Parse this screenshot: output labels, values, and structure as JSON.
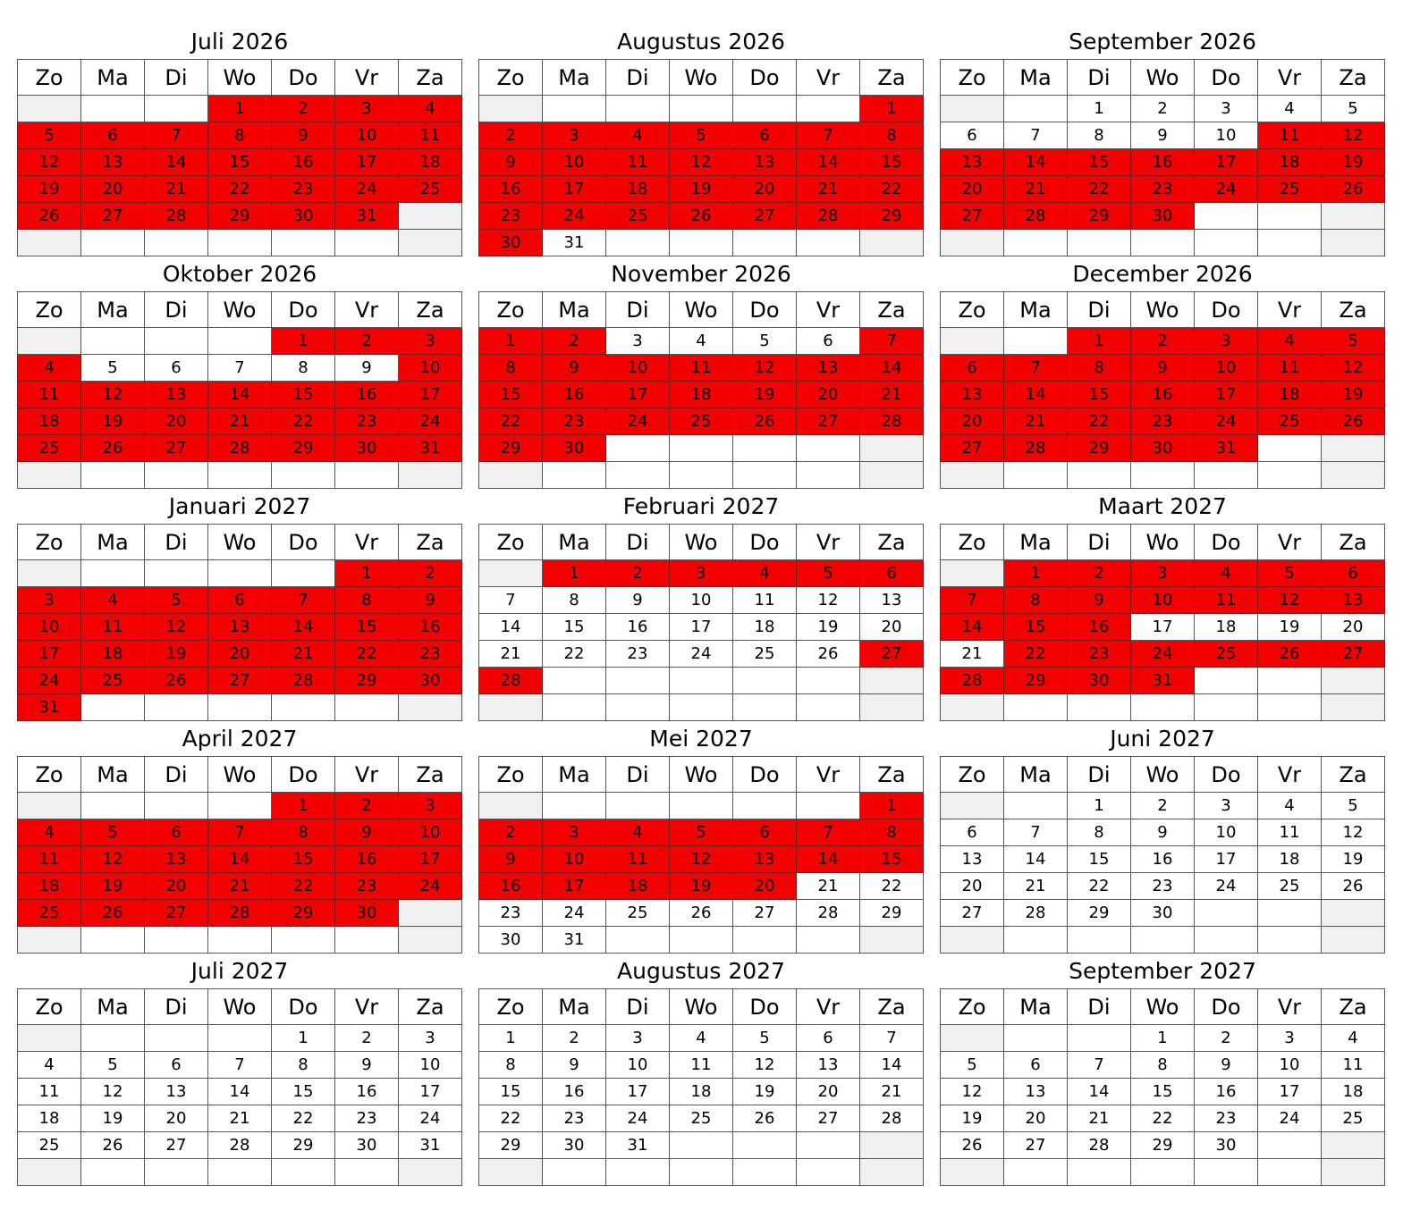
{
  "weekday_headers": [
    "Zo",
    "Ma",
    "Di",
    "Wo",
    "Do",
    "Vr",
    "Za"
  ],
  "colors": {
    "highlight": "#f50000",
    "weekend_empty": "#f0f0f0",
    "cell": "#ffffff",
    "border": "#555555"
  },
  "months": [
    {
      "title": "Juli 2026",
      "start_weekday": 3,
      "days": 31,
      "highlighted": [
        [
          1,
          31
        ]
      ]
    },
    {
      "title": "Augustus 2026",
      "start_weekday": 6,
      "days": 31,
      "highlighted": [
        [
          1,
          30
        ]
      ]
    },
    {
      "title": "September 2026",
      "start_weekday": 2,
      "days": 30,
      "highlighted": [
        [
          11,
          30
        ]
      ]
    },
    {
      "title": "Oktober 2026",
      "start_weekday": 4,
      "days": 31,
      "highlighted": [
        [
          1,
          4
        ],
        [
          10,
          31
        ]
      ]
    },
    {
      "title": "November 2026",
      "start_weekday": 0,
      "days": 30,
      "highlighted": [
        [
          1,
          2
        ],
        [
          7,
          30
        ]
      ]
    },
    {
      "title": "December 2026",
      "start_weekday": 2,
      "days": 31,
      "highlighted": [
        [
          1,
          31
        ]
      ]
    },
    {
      "title": "Januari 2027",
      "start_weekday": 5,
      "days": 31,
      "highlighted": [
        [
          1,
          31
        ]
      ]
    },
    {
      "title": "Februari 2027",
      "start_weekday": 1,
      "days": 28,
      "highlighted": [
        [
          1,
          6
        ],
        [
          27,
          28
        ]
      ]
    },
    {
      "title": "Maart 2027",
      "start_weekday": 1,
      "days": 31,
      "highlighted": [
        [
          1,
          16
        ],
        [
          22,
          31
        ]
      ]
    },
    {
      "title": "April 2027",
      "start_weekday": 4,
      "days": 30,
      "highlighted": [
        [
          1,
          30
        ]
      ]
    },
    {
      "title": "Mei 2027",
      "start_weekday": 6,
      "days": 31,
      "highlighted": [
        [
          1,
          20
        ]
      ]
    },
    {
      "title": "Juni 2027",
      "start_weekday": 2,
      "days": 30,
      "highlighted": []
    },
    {
      "title": "Juli 2027",
      "start_weekday": 4,
      "days": 31,
      "highlighted": []
    },
    {
      "title": "Augustus 2027",
      "start_weekday": 0,
      "days": 31,
      "highlighted": []
    },
    {
      "title": "September 2027",
      "start_weekday": 3,
      "days": 30,
      "highlighted": []
    }
  ]
}
